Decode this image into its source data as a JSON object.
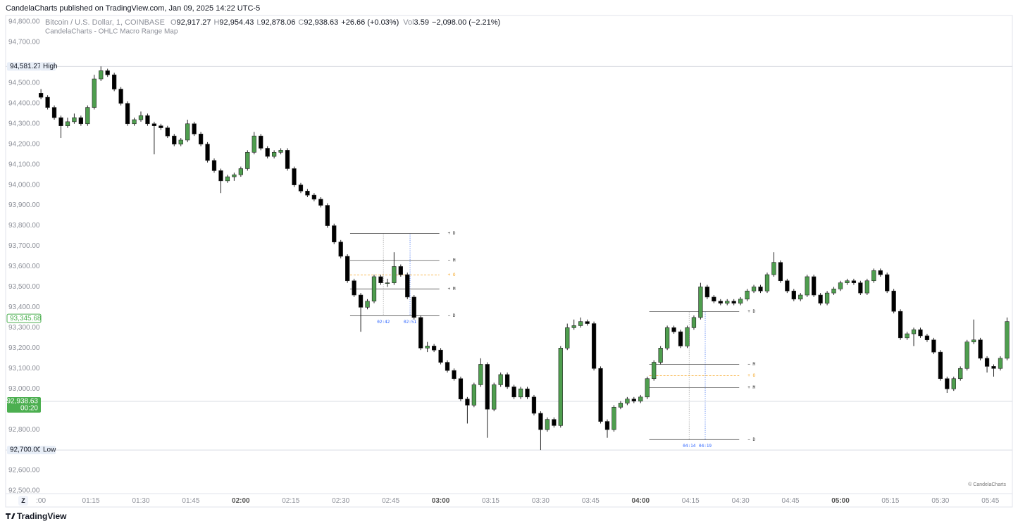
{
  "page": {
    "published": "CandelaCharts published on TradingView.com, Jan 09, 2025 14:22 UTC-5",
    "z_button": "Z",
    "copyright": "© CandelaCharts",
    "logo": "TradingView"
  },
  "chart_data": {
    "type": "candlestick",
    "title": "Bitcoin / U.S. Dollar, 1, COINBASE",
    "subtitle": "CandelaCharts - OHLC Macro Range Map",
    "legend": [
      {
        "key": "O",
        "value": "92,917.27"
      },
      {
        "key": "H",
        "value": "92,954.43"
      },
      {
        "key": "L",
        "value": "92,878.06"
      },
      {
        "key": "C",
        "value": "92,938.63"
      }
    ],
    "change": "+26.66 (+0.03%)",
    "volume": {
      "key": "Vol",
      "value": "3.59",
      "change": "−2,098.00 (−2.21%)"
    },
    "up_color": "#4e9e4e",
    "down_color": "#000000",
    "xlim": [
      -5.3,
      145.8
    ],
    "ylim": [
      92420.6,
      94831
    ],
    "grid": false,
    "xticks": [
      {
        "value": 0,
        "label": ":00"
      },
      {
        "value": 7.5,
        "label": "01:15"
      },
      {
        "value": 15,
        "label": "01:30"
      },
      {
        "value": 22.5,
        "label": "01:45"
      },
      {
        "value": 30,
        "label": "02:00"
      },
      {
        "value": 37.5,
        "label": "02:15"
      },
      {
        "value": 45,
        "label": "02:30"
      },
      {
        "value": 52.5,
        "label": "02:45"
      },
      {
        "value": 60,
        "label": "03:00"
      },
      {
        "value": 67.5,
        "label": "03:15"
      },
      {
        "value": 75,
        "label": "03:30"
      },
      {
        "value": 82.5,
        "label": "03:45"
      },
      {
        "value": 90,
        "label": "04:00"
      },
      {
        "value": 97.5,
        "label": "04:15"
      },
      {
        "value": 105,
        "label": "04:30"
      },
      {
        "value": 112.5,
        "label": "04:45"
      },
      {
        "value": 120,
        "label": "05:00"
      },
      {
        "value": 127.5,
        "label": "05:15"
      },
      {
        "value": 135,
        "label": "05:30"
      },
      {
        "value": 142.5,
        "label": "05:45"
      }
    ],
    "yticks": [
      {
        "value": 94800,
        "label": "94,800.00"
      },
      {
        "value": 94700,
        "label": "94,700.00"
      },
      {
        "value": 94500,
        "label": "94,500.00"
      },
      {
        "value": 94400,
        "label": "94,400.00"
      },
      {
        "value": 94300,
        "label": "94,300.00"
      },
      {
        "value": 94200,
        "label": "94,200.00"
      },
      {
        "value": 94100,
        "label": "94,100.00"
      },
      {
        "value": 94000,
        "label": "94,000.00"
      },
      {
        "value": 93900,
        "label": "93,900.00"
      },
      {
        "value": 93800,
        "label": "93,800.00"
      },
      {
        "value": 93700,
        "label": "93,700.00"
      },
      {
        "value": 93600,
        "label": "93,600.00"
      },
      {
        "value": 93500,
        "label": "93,500.00"
      },
      {
        "value": 93400,
        "label": "93,400.00"
      },
      {
        "value": 93300,
        "label": "93,300.00"
      },
      {
        "value": 93200,
        "label": "93,200.00"
      },
      {
        "value": 93100,
        "label": "93,100.00"
      },
      {
        "value": 93000,
        "label": "93,000.00"
      },
      {
        "value": 92800,
        "label": "92,800.00"
      },
      {
        "value": 92600,
        "label": "92,600.00"
      },
      {
        "value": 92500,
        "label": "92,500.00"
      }
    ],
    "badges": [
      {
        "value": 94581.27,
        "label": "94,581.27",
        "tag": "High",
        "style": "plain",
        "line": true
      },
      {
        "value": 93345.68,
        "label": "93,345.68",
        "style": "outline",
        "line": false
      },
      {
        "value": 92938.63,
        "label": "92,938.63",
        "tag": "00:20",
        "style": "filled",
        "line": true
      },
      {
        "value": 92700,
        "label": "92,700.00",
        "tag": "Low",
        "style": "plain",
        "line": true
      }
    ],
    "macro_ranges": [
      {
        "x_range": [
          46.4,
          59.8
        ],
        "times": [
          {
            "value": 51.4,
            "label": "02:42"
          },
          {
            "value": 55.4,
            "label": "02:51"
          }
        ],
        "levels": [
          {
            "label": "+ D",
            "value": 93762
          },
          {
            "label": "− M",
            "value": 93630
          },
          {
            "label": "+ O",
            "value": 93558,
            "dashed": true
          },
          {
            "label": "+ M",
            "value": 93490
          },
          {
            "label": "− D",
            "value": 93358
          }
        ]
      },
      {
        "x_range": [
          91.3,
          104.8
        ],
        "times": [
          {
            "value": 97.3,
            "label": "04:14"
          },
          {
            "value": 99.7,
            "label": "04:19"
          }
        ],
        "levels": [
          {
            "label": "+ D",
            "value": 93379
          },
          {
            "label": "− M",
            "value": 93120
          },
          {
            "label": "+ O",
            "value": 93065,
            "dashed": true
          },
          {
            "label": "+ M",
            "value": 93006
          },
          {
            "label": "− D",
            "value": 92751
          }
        ]
      }
    ],
    "candles": [
      [
        94450,
        94470,
        94420,
        94430
      ],
      [
        94430,
        94440,
        94370,
        94380
      ],
      [
        94380,
        94390,
        94320,
        94330
      ],
      [
        94330,
        94340,
        94230,
        94290
      ],
      [
        94290,
        94330,
        94280,
        94310
      ],
      [
        94310,
        94350,
        94300,
        94330
      ],
      [
        94330,
        94340,
        94290,
        94300
      ],
      [
        94300,
        94390,
        94290,
        94380
      ],
      [
        94380,
        94540,
        94370,
        94520
      ],
      [
        94520,
        94581.27,
        94510,
        94560
      ],
      [
        94560,
        94570,
        94530,
        94540
      ],
      [
        94540,
        94550,
        94460,
        94470
      ],
      [
        94470,
        94480,
        94390,
        94400
      ],
      [
        94400,
        94410,
        94290,
        94300
      ],
      [
        94300,
        94330,
        94290,
        94320
      ],
      [
        94320,
        94360,
        94310,
        94340
      ],
      [
        94340,
        94350,
        94290,
        94300
      ],
      [
        94300,
        94310,
        94150,
        94290
      ],
      [
        94290,
        94300,
        94270,
        94280
      ],
      [
        94280,
        94290,
        94230,
        94240
      ],
      [
        94240,
        94250,
        94190,
        94200
      ],
      [
        94200,
        94230,
        94190,
        94220
      ],
      [
        94220,
        94320,
        94210,
        94300
      ],
      [
        94300,
        94310,
        94240,
        94250
      ],
      [
        94250,
        94260,
        94190,
        94200
      ],
      [
        94200,
        94210,
        94110,
        94120
      ],
      [
        94120,
        94130,
        94060,
        94070
      ],
      [
        94070,
        94080,
        93960,
        94020
      ],
      [
        94020,
        94050,
        94010,
        94040
      ],
      [
        94040,
        94060,
        94020,
        94050
      ],
      [
        94050,
        94090,
        94040,
        94080
      ],
      [
        94080,
        94170,
        94070,
        94160
      ],
      [
        94160,
        94260,
        94150,
        94240
      ],
      [
        94240,
        94250,
        94170,
        94180
      ],
      [
        94180,
        94190,
        94130,
        94140
      ],
      [
        94140,
        94170,
        94130,
        94160
      ],
      [
        94160,
        94180,
        94150,
        94170
      ],
      [
        94170,
        94180,
        94070,
        94080
      ],
      [
        94080,
        94090,
        93990,
        94000
      ],
      [
        94000,
        94010,
        93960,
        93970
      ],
      [
        93970,
        93980,
        93940,
        93950
      ],
      [
        93950,
        93960,
        93920,
        93930
      ],
      [
        93930,
        93940,
        93890,
        93900
      ],
      [
        93900,
        93910,
        93790,
        93800
      ],
      [
        93800,
        93810,
        93710,
        93720
      ],
      [
        93720,
        93730,
        93640,
        93650
      ],
      [
        93650,
        93660,
        93520,
        93530
      ],
      [
        93530,
        93540,
        93450,
        93460
      ],
      [
        93460,
        93470,
        93280,
        93400
      ],
      [
        93400,
        93440,
        93390,
        93430
      ],
      [
        93430,
        93560,
        93420,
        93550
      ],
      [
        93550,
        93560,
        93510,
        93520
      ],
      [
        93520,
        93540,
        93500,
        93520
      ],
      [
        93520,
        93670,
        93510,
        93600
      ],
      [
        93600,
        93610,
        93550,
        93560
      ],
      [
        93560,
        93570,
        93440,
        93450
      ],
      [
        93450,
        93460,
        93340,
        93350
      ],
      [
        93350,
        93360,
        93190,
        93200
      ],
      [
        93200,
        93230,
        93180,
        93210
      ],
      [
        93210,
        93220,
        93180,
        93190
      ],
      [
        93190,
        93200,
        93120,
        93130
      ],
      [
        93130,
        93140,
        93080,
        93090
      ],
      [
        93090,
        93100,
        93040,
        93050
      ],
      [
        93050,
        93060,
        92940,
        92950
      ],
      [
        92950,
        92960,
        92830,
        92920
      ],
      [
        92920,
        93030,
        92910,
        93020
      ],
      [
        93020,
        93150,
        93010,
        93120
      ],
      [
        93120,
        93130,
        92760,
        92900
      ],
      [
        92900,
        93030,
        92890,
        93020
      ],
      [
        93020,
        93080,
        93010,
        93070
      ],
      [
        93070,
        93080,
        93000,
        93010
      ],
      [
        93010,
        93020,
        92950,
        92960
      ],
      [
        92960,
        93010,
        92950,
        93000
      ],
      [
        93000,
        93010,
        92950,
        92960
      ],
      [
        92960,
        92970,
        92870,
        92880
      ],
      [
        92880,
        92890,
        92700,
        92800
      ],
      [
        92800,
        92860,
        92790,
        92850
      ],
      [
        92850,
        92860,
        92810,
        92820
      ],
      [
        92820,
        93210,
        92810,
        93200
      ],
      [
        93200,
        93320,
        93190,
        93300
      ],
      [
        93300,
        93340,
        93290,
        93310
      ],
      [
        93310,
        93350,
        93300,
        93330
      ],
      [
        93330,
        93340,
        93310,
        93320
      ],
      [
        93320,
        93330,
        93090,
        93100
      ],
      [
        93100,
        93110,
        92830,
        92840
      ],
      [
        92840,
        92850,
        92760,
        92800
      ],
      [
        92800,
        92920,
        92790,
        92910
      ],
      [
        92910,
        92940,
        92900,
        92930
      ],
      [
        92930,
        92960,
        92920,
        92950
      ],
      [
        92950,
        92960,
        92930,
        92940
      ],
      [
        92940,
        92970,
        92930,
        92960
      ],
      [
        92960,
        93060,
        92950,
        93050
      ],
      [
        93050,
        93140,
        93040,
        93130
      ],
      [
        93130,
        93210,
        93120,
        93200
      ],
      [
        93200,
        93310,
        93190,
        93300
      ],
      [
        93300,
        93310,
        93270,
        93280
      ],
      [
        93280,
        93290,
        93200,
        93210
      ],
      [
        93210,
        93310,
        93200,
        93300
      ],
      [
        93300,
        93360,
        93290,
        93350
      ],
      [
        93350,
        93520,
        93340,
        93500
      ],
      [
        93500,
        93510,
        93440,
        93450
      ],
      [
        93450,
        93460,
        93420,
        93430
      ],
      [
        93430,
        93440,
        93410,
        93420
      ],
      [
        93420,
        93440,
        93410,
        93430
      ],
      [
        93430,
        93440,
        93410,
        93420
      ],
      [
        93420,
        93450,
        93410,
        93440
      ],
      [
        93440,
        93490,
        93430,
        93480
      ],
      [
        93480,
        93510,
        93470,
        93500
      ],
      [
        93500,
        93510,
        93470,
        93480
      ],
      [
        93480,
        93570,
        93470,
        93560
      ],
      [
        93560,
        93670,
        93550,
        93620
      ],
      [
        93620,
        93630,
        93520,
        93530
      ],
      [
        93530,
        93540,
        93470,
        93480
      ],
      [
        93480,
        93490,
        93430,
        93440
      ],
      [
        93440,
        93470,
        93430,
        93460
      ],
      [
        93460,
        93560,
        93450,
        93550
      ],
      [
        93550,
        93560,
        93450,
        93460
      ],
      [
        93460,
        93470,
        93410,
        93420
      ],
      [
        93420,
        93480,
        93410,
        93470
      ],
      [
        93470,
        93500,
        93460,
        93490
      ],
      [
        93490,
        93530,
        93480,
        93520
      ],
      [
        93520,
        93540,
        93510,
        93530
      ],
      [
        93530,
        93540,
        93510,
        93520
      ],
      [
        93520,
        93530,
        93460,
        93470
      ],
      [
        93470,
        93540,
        93460,
        93530
      ],
      [
        93530,
        93590,
        93520,
        93580
      ],
      [
        93580,
        93590,
        93550,
        93560
      ],
      [
        93560,
        93570,
        93470,
        93480
      ],
      [
        93480,
        93490,
        93370,
        93380
      ],
      [
        93380,
        93390,
        93240,
        93250
      ],
      [
        93250,
        93280,
        93240,
        93270
      ],
      [
        93270,
        93300,
        93210,
        93290
      ],
      [
        93290,
        93300,
        93250,
        93260
      ],
      [
        93260,
        93270,
        93230,
        93240
      ],
      [
        93240,
        93250,
        93170,
        93180
      ],
      [
        93180,
        93190,
        93040,
        93050
      ],
      [
        93050,
        93060,
        92980,
        93000
      ],
      [
        93000,
        93060,
        92990,
        93050
      ],
      [
        93050,
        93110,
        93040,
        93100
      ],
      [
        93100,
        93240,
        93090,
        93230
      ],
      [
        93230,
        93340,
        93220,
        93240
      ],
      [
        93240,
        93250,
        93140,
        93150
      ],
      [
        93150,
        93160,
        93080,
        93110
      ],
      [
        93110,
        93120,
        93060,
        93100
      ],
      [
        93100,
        93160,
        93090,
        93150
      ],
      [
        93150,
        93350,
        93140,
        93330
      ]
    ]
  }
}
